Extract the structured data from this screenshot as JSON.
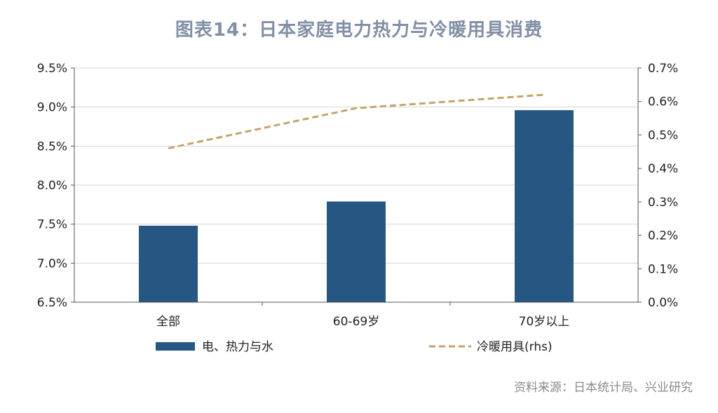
{
  "title": "图表14：日本家庭电力热力与冷暖用具消费",
  "source": "资料来源：日本统计局、兴业研究",
  "chart_data": {
    "type": "bar",
    "categories": [
      "全部",
      "60-69岁",
      "70岁以上"
    ],
    "series": [
      {
        "name": "电、热力与水",
        "kind": "bar",
        "axis": "left",
        "values": [
          7.48,
          7.79,
          8.96
        ],
        "color": "#265682"
      },
      {
        "name": "冷暖用具(rhs)",
        "kind": "line",
        "axis": "right",
        "style": "dashed",
        "values": [
          0.46,
          0.58,
          0.62
        ],
        "color": "#c4a56a"
      }
    ],
    "y_left": {
      "min": 6.5,
      "max": 9.5,
      "step": 0.5,
      "unit": "%",
      "decimals": 1
    },
    "y_right": {
      "min": 0.0,
      "max": 0.7,
      "step": 0.1,
      "unit": "%",
      "decimals": 1
    },
    "grid": true,
    "legend_position": "bottom"
  }
}
